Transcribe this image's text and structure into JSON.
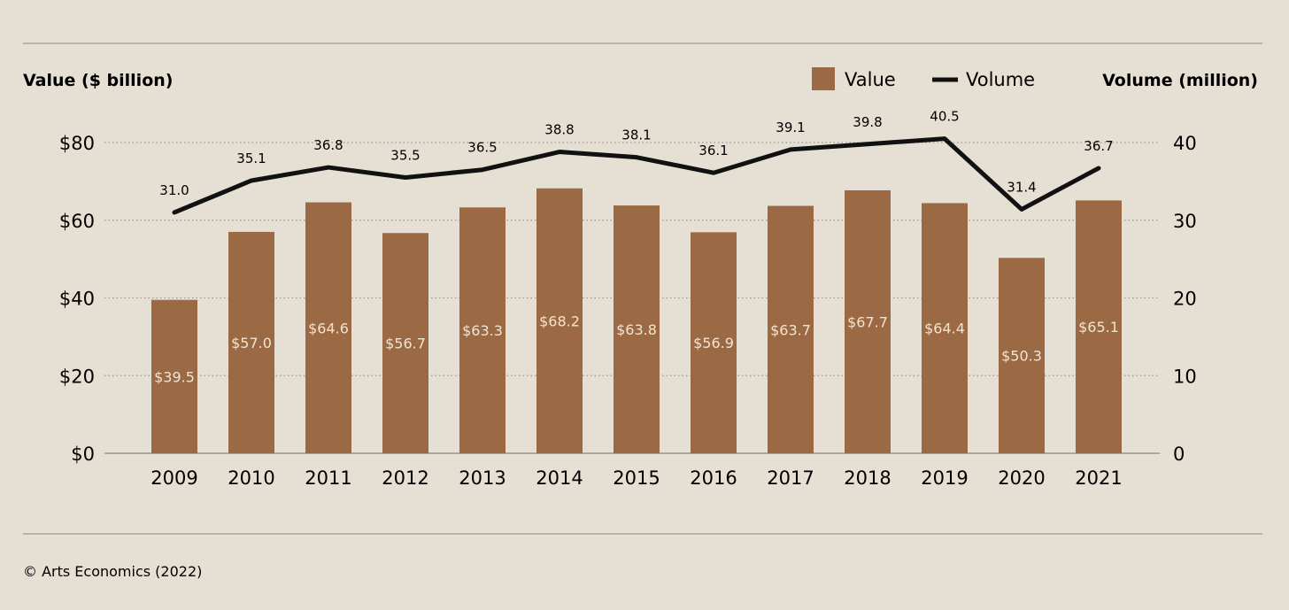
{
  "colors": {
    "background": "#e6dfd4",
    "bar": "#9b6943",
    "line": "#111111",
    "grid": "#9a958d",
    "bar_label": "#f2e4d2"
  },
  "chart_data": {
    "type": "bar",
    "combo": "bar + line (dual axis)",
    "left_axis_title": "Value ($ billion)",
    "right_axis_title": "Volume (million)",
    "legend": [
      {
        "label": "Value",
        "symbol": "square",
        "color": "#9b6943"
      },
      {
        "label": "Volume",
        "symbol": "line",
        "color": "#111111"
      }
    ],
    "categories": [
      "2009",
      "2010",
      "2011",
      "2012",
      "2013",
      "2014",
      "2015",
      "2016",
      "2017",
      "2018",
      "2019",
      "2020",
      "2021"
    ],
    "series": [
      {
        "name": "Value",
        "type": "bar",
        "axis": "left",
        "values": [
          39.5,
          57.0,
          64.6,
          56.7,
          63.3,
          68.2,
          63.8,
          56.9,
          63.7,
          67.7,
          64.4,
          50.3,
          65.1
        ],
        "labels": [
          "$39.5",
          "$57.0",
          "$64.6",
          "$56.7",
          "$63.3",
          "$68.2",
          "$63.8",
          "$56.9",
          "$63.7",
          "$67.7",
          "$64.4",
          "$50.3",
          "$65.1"
        ]
      },
      {
        "name": "Volume",
        "type": "line",
        "axis": "right",
        "values": [
          31.0,
          35.1,
          36.8,
          35.5,
          36.5,
          38.8,
          38.1,
          36.1,
          39.1,
          39.8,
          40.5,
          31.4,
          36.7
        ],
        "labels": [
          "31.0",
          "35.1",
          "36.8",
          "35.5",
          "36.5",
          "38.8",
          "38.1",
          "36.1",
          "39.1",
          "39.8",
          "40.5",
          "31.4",
          "36.7"
        ]
      }
    ],
    "left_axis": {
      "range": [
        0,
        80
      ],
      "ticks": [
        0,
        20,
        40,
        60,
        80
      ],
      "tick_labels": [
        "$0",
        "$20",
        "$40",
        "$60",
        "$80"
      ]
    },
    "right_axis": {
      "range": [
        0,
        40
      ],
      "ticks": [
        0,
        10,
        20,
        30,
        40
      ],
      "tick_labels": [
        "0",
        "10",
        "20",
        "30",
        "40"
      ]
    },
    "grid": "dotted horizontal",
    "legend_position": "top-right"
  },
  "source": "© Arts Economics (2022)"
}
